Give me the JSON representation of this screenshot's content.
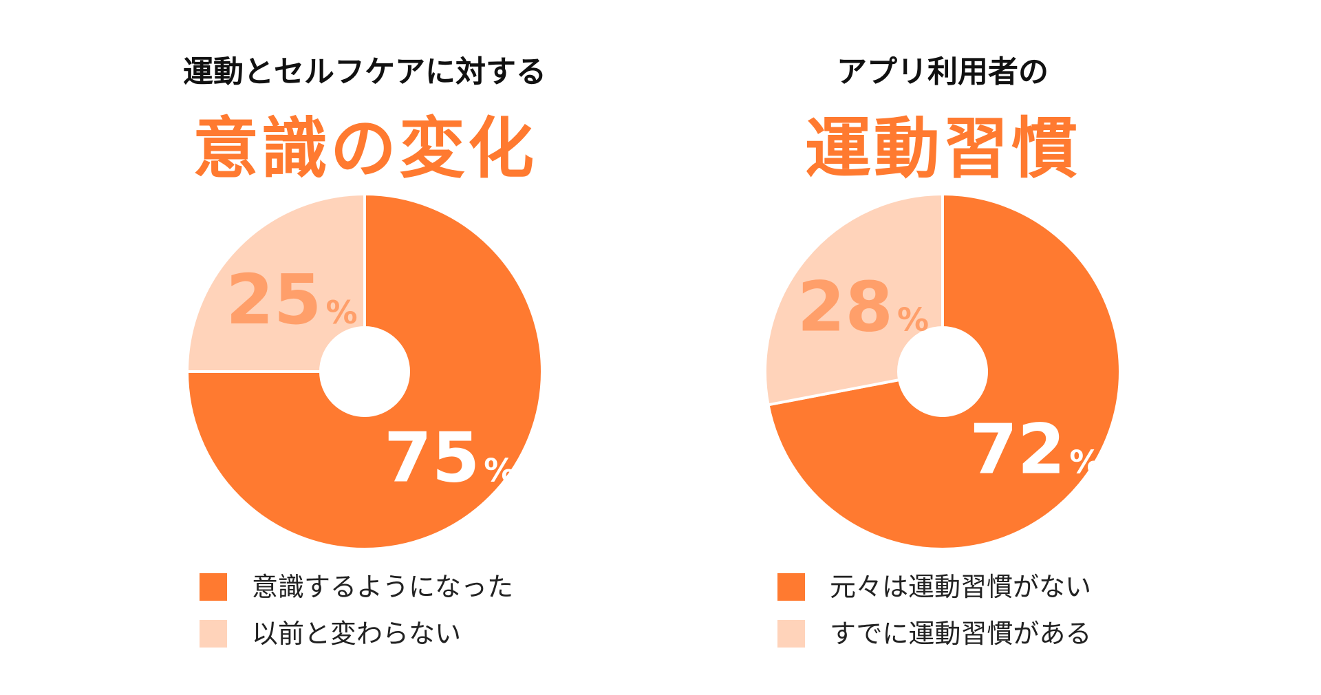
{
  "colors": {
    "primary": "#FF7A30",
    "light": "#FFD3BA",
    "light_label": "#FF9F6A",
    "main_label": "#FFFFFF"
  },
  "panels": [
    {
      "subtitle": "運動とセルフケアに対する",
      "title": "意識の変化",
      "legend": [
        {
          "label": "意識するようになった"
        },
        {
          "label": "以前と変わらない"
        }
      ],
      "slice_labels": [
        {
          "value": "75",
          "unit": "%"
        },
        {
          "value": "25",
          "unit": "%"
        }
      ]
    },
    {
      "subtitle": "アプリ利用者の",
      "title": "運動習慣",
      "legend": [
        {
          "label": "元々は運動習慣がない"
        },
        {
          "label": "すでに運動習慣がある"
        }
      ],
      "slice_labels": [
        {
          "value": "72",
          "unit": "%"
        },
        {
          "value": "28",
          "unit": "%"
        }
      ]
    }
  ],
  "chart_data": [
    {
      "type": "pie",
      "categories": [
        "意識するようになった",
        "以前と変わらない"
      ],
      "values": [
        75,
        25
      ],
      "unit": "%",
      "title": "意識の変化",
      "subtitle": "運動とセルフケアに対する",
      "legend_position": "bottom"
    },
    {
      "type": "pie",
      "categories": [
        "元々は運動習慣がない",
        "すでに運動習慣がある"
      ],
      "values": [
        72,
        28
      ],
      "unit": "%",
      "title": "運動習慣",
      "subtitle": "アプリ利用者の",
      "legend_position": "bottom"
    }
  ]
}
